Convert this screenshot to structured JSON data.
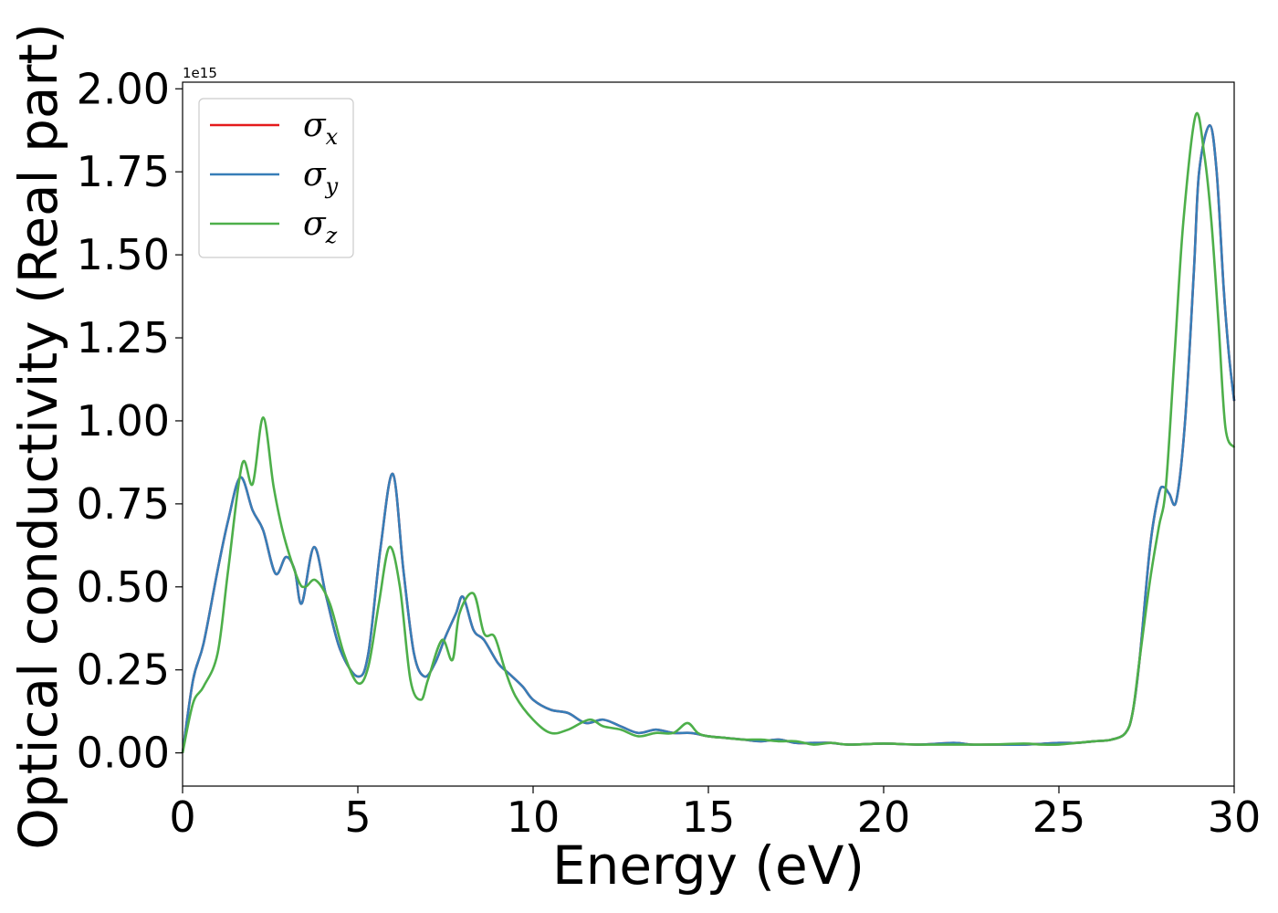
{
  "chart_data": {
    "type": "line",
    "xlabel": "Energy (eV)",
    "ylabel": "Optical conductivity (Real part)",
    "y_offset_label": "1e15",
    "xlim": [
      0,
      30
    ],
    "ylim": [
      -0.1,
      2.02
    ],
    "x_ticks": [
      "0",
      "5",
      "10",
      "15",
      "20",
      "25",
      "30"
    ],
    "y_ticks": [
      "0.00",
      "0.25",
      "0.50",
      "0.75",
      "1.00",
      "1.25",
      "1.50",
      "1.75",
      "2.00"
    ],
    "legend_position": "top-left",
    "grid": false,
    "series": [
      {
        "name": "σx",
        "symbol": "σ",
        "subscript": "x",
        "color": "#e41a1c",
        "x": [
          0,
          0.3,
          0.6,
          1.0,
          1.3,
          1.65,
          2.0,
          2.3,
          2.65,
          2.95,
          3.2,
          3.4,
          3.75,
          4.1,
          4.5,
          5.0,
          5.3,
          5.65,
          6.0,
          6.3,
          6.6,
          6.9,
          7.2,
          7.5,
          7.8,
          8.0,
          8.3,
          8.6,
          9.0,
          9.3,
          9.7,
          10.0,
          10.5,
          11.0,
          11.5,
          12.0,
          12.5,
          13.0,
          13.5,
          14.0,
          14.5,
          15.0,
          15.5,
          16.0,
          16.5,
          17.0,
          17.5,
          18.0,
          18.5,
          19.0,
          20.0,
          21.0,
          22.0,
          22.5,
          23.0,
          24.0,
          25.0,
          25.5,
          26.0,
          26.5,
          26.9,
          27.1,
          27.3,
          27.6,
          27.85,
          28.0,
          28.15,
          28.35,
          28.6,
          28.85,
          29.0,
          29.3,
          29.5,
          29.7,
          29.85,
          30.0
        ],
        "values": [
          0.0,
          0.22,
          0.33,
          0.55,
          0.7,
          0.83,
          0.73,
          0.67,
          0.54,
          0.59,
          0.55,
          0.45,
          0.62,
          0.47,
          0.31,
          0.23,
          0.3,
          0.62,
          0.84,
          0.55,
          0.3,
          0.23,
          0.27,
          0.35,
          0.42,
          0.47,
          0.37,
          0.34,
          0.27,
          0.24,
          0.2,
          0.16,
          0.13,
          0.12,
          0.09,
          0.1,
          0.08,
          0.06,
          0.07,
          0.06,
          0.06,
          0.05,
          0.045,
          0.04,
          0.035,
          0.04,
          0.03,
          0.03,
          0.03,
          0.025,
          0.028,
          0.025,
          0.03,
          0.025,
          0.025,
          0.025,
          0.03,
          0.03,
          0.035,
          0.04,
          0.06,
          0.12,
          0.28,
          0.62,
          0.78,
          0.8,
          0.78,
          0.76,
          1.0,
          1.45,
          1.75,
          1.89,
          1.75,
          1.4,
          1.2,
          1.06
        ]
      },
      {
        "name": "σy",
        "symbol": "σ",
        "subscript": "y",
        "color": "#377eb8",
        "x": [
          0,
          0.3,
          0.6,
          1.0,
          1.3,
          1.65,
          2.0,
          2.3,
          2.65,
          2.95,
          3.2,
          3.4,
          3.75,
          4.1,
          4.5,
          5.0,
          5.3,
          5.65,
          6.0,
          6.3,
          6.6,
          6.9,
          7.2,
          7.5,
          7.8,
          8.0,
          8.3,
          8.6,
          9.0,
          9.3,
          9.7,
          10.0,
          10.5,
          11.0,
          11.5,
          12.0,
          12.5,
          13.0,
          13.5,
          14.0,
          14.5,
          15.0,
          15.5,
          16.0,
          16.5,
          17.0,
          17.5,
          18.0,
          18.5,
          19.0,
          20.0,
          21.0,
          22.0,
          22.5,
          23.0,
          24.0,
          25.0,
          25.5,
          26.0,
          26.5,
          26.9,
          27.1,
          27.3,
          27.6,
          27.85,
          28.0,
          28.15,
          28.35,
          28.6,
          28.85,
          29.0,
          29.3,
          29.5,
          29.7,
          29.85,
          30.0
        ],
        "values": [
          0.0,
          0.22,
          0.33,
          0.55,
          0.7,
          0.83,
          0.73,
          0.67,
          0.54,
          0.59,
          0.55,
          0.45,
          0.62,
          0.47,
          0.31,
          0.23,
          0.3,
          0.62,
          0.84,
          0.55,
          0.3,
          0.23,
          0.27,
          0.35,
          0.42,
          0.47,
          0.37,
          0.34,
          0.27,
          0.24,
          0.2,
          0.16,
          0.13,
          0.12,
          0.09,
          0.1,
          0.08,
          0.06,
          0.07,
          0.06,
          0.06,
          0.05,
          0.045,
          0.04,
          0.035,
          0.04,
          0.03,
          0.03,
          0.03,
          0.025,
          0.028,
          0.025,
          0.03,
          0.025,
          0.025,
          0.025,
          0.03,
          0.03,
          0.035,
          0.04,
          0.06,
          0.12,
          0.28,
          0.62,
          0.78,
          0.8,
          0.78,
          0.76,
          1.0,
          1.45,
          1.75,
          1.89,
          1.75,
          1.4,
          1.2,
          1.06
        ]
      },
      {
        "name": "σz",
        "symbol": "σ",
        "subscript": "z",
        "color": "#4daf4a",
        "x": [
          0,
          0.3,
          0.6,
          1.0,
          1.3,
          1.7,
          2.0,
          2.3,
          2.6,
          2.9,
          3.3,
          3.5,
          3.8,
          4.2,
          4.6,
          5.0,
          5.3,
          5.6,
          5.9,
          6.2,
          6.5,
          6.8,
          7.0,
          7.4,
          7.7,
          7.9,
          8.3,
          8.6,
          8.9,
          9.2,
          9.5,
          10.0,
          10.5,
          11.0,
          11.6,
          12.0,
          12.5,
          13.0,
          13.5,
          14.0,
          14.4,
          14.7,
          15.0,
          15.5,
          16.0,
          16.5,
          17.0,
          17.5,
          18.0,
          18.5,
          19.0,
          20.0,
          21.0,
          22.0,
          23.0,
          24.0,
          24.5,
          25.0,
          25.5,
          26.0,
          26.5,
          26.9,
          27.1,
          27.3,
          27.6,
          27.85,
          28.05,
          28.3,
          28.55,
          28.9,
          29.15,
          29.35,
          29.55,
          29.75,
          30.0
        ],
        "values": [
          0.0,
          0.15,
          0.2,
          0.3,
          0.55,
          0.87,
          0.81,
          1.01,
          0.8,
          0.65,
          0.52,
          0.5,
          0.52,
          0.45,
          0.3,
          0.21,
          0.26,
          0.45,
          0.62,
          0.5,
          0.22,
          0.16,
          0.22,
          0.34,
          0.28,
          0.42,
          0.48,
          0.36,
          0.35,
          0.25,
          0.17,
          0.1,
          0.06,
          0.07,
          0.1,
          0.08,
          0.07,
          0.05,
          0.06,
          0.06,
          0.09,
          0.06,
          0.05,
          0.045,
          0.04,
          0.04,
          0.035,
          0.035,
          0.025,
          0.03,
          0.025,
          0.028,
          0.025,
          0.025,
          0.025,
          0.028,
          0.025,
          0.025,
          0.03,
          0.035,
          0.04,
          0.06,
          0.12,
          0.28,
          0.52,
          0.68,
          0.8,
          1.2,
          1.6,
          1.92,
          1.8,
          1.6,
          1.3,
          0.98,
          0.92
        ]
      }
    ]
  }
}
